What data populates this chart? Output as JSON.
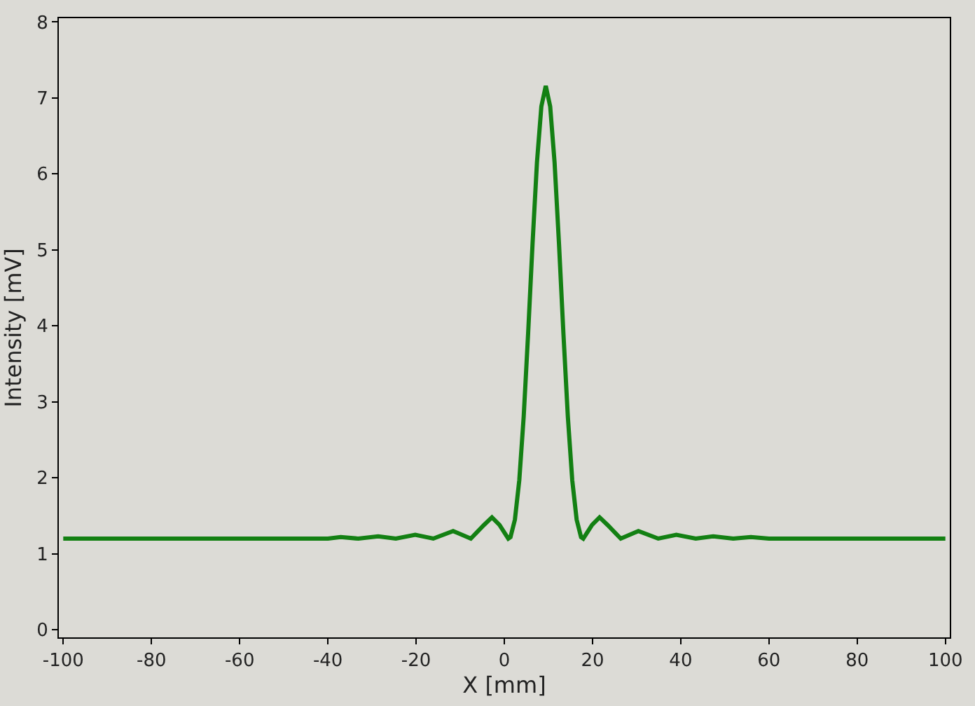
{
  "chart_data": {
    "type": "line",
    "xlabel": "X [mm]",
    "ylabel": "Intensity [mV]",
    "x": [
      -100,
      -80,
      -60,
      -40,
      -37.1,
      -33.1,
      -28.6,
      -24.6,
      -20.2,
      -16.1,
      -11.6,
      -7.6,
      -4.6,
      -2.8,
      -1.1,
      0.9,
      1.4,
      2.4,
      3.4,
      4.4,
      5.4,
      6.4,
      7.4,
      8.4,
      9.4,
      10.4,
      11.4,
      12.4,
      13.4,
      14.4,
      15.4,
      16.4,
      17.4,
      17.9,
      19.9,
      21.6,
      23.4,
      26.4,
      30.4,
      34.9,
      39,
      43.4,
      47.4,
      51.9,
      55.9,
      60,
      80,
      100
    ],
    "series": [
      {
        "color": "#138013",
        "values": [
          1.2,
          1.2,
          1.2,
          1.2,
          1.22,
          1.2,
          1.23,
          1.2,
          1.25,
          1.2,
          1.3,
          1.2,
          1.38,
          1.48,
          1.38,
          1.2,
          1.22,
          1.45,
          1.97,
          2.81,
          3.9,
          5.08,
          6.15,
          6.89,
          7.16,
          6.89,
          6.15,
          5.08,
          3.9,
          2.81,
          1.97,
          1.45,
          1.22,
          1.2,
          1.38,
          1.48,
          1.38,
          1.2,
          1.3,
          1.2,
          1.25,
          1.2,
          1.23,
          1.2,
          1.22,
          1.2,
          1.2,
          1.2
        ]
      }
    ],
    "xlim": [
      -101,
      101
    ],
    "ylim": [
      -0.1,
      8.05
    ],
    "xticks": [
      -100,
      -80,
      -60,
      -40,
      -20,
      0,
      20,
      40,
      60,
      80,
      100
    ],
    "yticks": [
      0,
      1,
      2,
      3,
      4,
      5,
      6,
      7,
      8
    ],
    "grid": false,
    "marker": "none",
    "line_style": "solid"
  }
}
